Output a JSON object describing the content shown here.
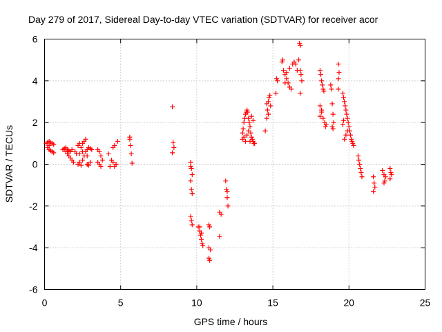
{
  "chart_data": {
    "type": "scatter",
    "title": "Day 279 of 2017, Sidereal Day-to-day VTEC variation (SDTVAR) for receiver acor",
    "xlabel": "GPS time / hours",
    "ylabel": "SDTVAR / TECUs",
    "xlim": [
      0,
      25
    ],
    "ylim": [
      -6,
      6
    ],
    "xticks": [
      0,
      5,
      10,
      15,
      20,
      25
    ],
    "yticks": [
      -6,
      -4,
      -2,
      0,
      2,
      4,
      6
    ],
    "grid": true,
    "marker": "+",
    "color": "#ff0000",
    "series": [
      {
        "name": "SDTVAR",
        "points": [
          [
            0.1,
            1.0
          ],
          [
            0.2,
            1.05
          ],
          [
            0.3,
            1.1
          ],
          [
            0.4,
            1.05
          ],
          [
            0.5,
            1.0
          ],
          [
            0.6,
            0.95
          ],
          [
            0.2,
            0.8
          ],
          [
            0.3,
            0.7
          ],
          [
            0.4,
            0.65
          ],
          [
            0.5,
            0.6
          ],
          [
            0.6,
            0.55
          ],
          [
            0.3,
            0.9
          ],
          [
            1.2,
            0.7
          ],
          [
            1.3,
            0.75
          ],
          [
            1.4,
            0.6
          ],
          [
            1.5,
            0.5
          ],
          [
            1.6,
            0.4
          ],
          [
            1.7,
            0.3
          ],
          [
            1.8,
            0.2
          ],
          [
            1.9,
            0.1
          ],
          [
            1.5,
            0.7
          ],
          [
            1.6,
            0.65
          ],
          [
            1.7,
            0.6
          ],
          [
            1.8,
            0.7
          ],
          [
            2.0,
            0.6
          ],
          [
            2.1,
            0.5
          ],
          [
            1.4,
            0.8
          ],
          [
            2.2,
            0.9
          ],
          [
            2.3,
            1.0
          ],
          [
            2.4,
            0.8
          ],
          [
            2.5,
            1.0
          ],
          [
            2.6,
            1.1
          ],
          [
            2.7,
            1.2
          ],
          [
            2.2,
            0.0
          ],
          [
            2.3,
            0.1
          ],
          [
            2.4,
            -0.05
          ],
          [
            2.5,
            0.2
          ],
          [
            2.6,
            0.4
          ],
          [
            2.7,
            0.6
          ],
          [
            2.8,
            0.7
          ],
          [
            2.9,
            0.8
          ],
          [
            3.0,
            0.75
          ],
          [
            3.1,
            0.7
          ],
          [
            2.8,
            0.0
          ],
          [
            2.9,
            -0.05
          ],
          [
            3.0,
            0.1
          ],
          [
            2.3,
            0.5
          ],
          [
            2.5,
            0.6
          ],
          [
            2.8,
            0.4
          ],
          [
            3.5,
            0.7
          ],
          [
            3.6,
            0.6
          ],
          [
            3.7,
            0.4
          ],
          [
            3.8,
            0.2
          ],
          [
            3.5,
            0.1
          ],
          [
            3.6,
            0.0
          ],
          [
            3.7,
            -0.1
          ],
          [
            4.2,
            0.5
          ],
          [
            4.3,
            -0.1
          ],
          [
            4.4,
            0.2
          ],
          [
            4.5,
            0.8
          ],
          [
            4.6,
            0.9
          ],
          [
            4.7,
            0.0
          ],
          [
            4.8,
            1.1
          ],
          [
            4.6,
            -0.1
          ],
          [
            4.5,
            0.1
          ],
          [
            5.6,
            1.3
          ],
          [
            5.65,
            0.9
          ],
          [
            5.7,
            0.5
          ],
          [
            5.75,
            0.05
          ],
          [
            5.6,
            1.2
          ],
          [
            8.4,
            2.75
          ],
          [
            8.45,
            1.05
          ],
          [
            8.5,
            0.8
          ],
          [
            8.4,
            0.55
          ],
          [
            9.6,
            -0.1
          ],
          [
            9.65,
            -0.2
          ],
          [
            9.7,
            -0.5
          ],
          [
            9.6,
            -0.8
          ],
          [
            9.65,
            -1.2
          ],
          [
            9.7,
            -1.4
          ],
          [
            9.6,
            -2.5
          ],
          [
            9.65,
            -2.7
          ],
          [
            9.7,
            -2.9
          ],
          [
            9.6,
            0.1
          ],
          [
            10.1,
            -3.0
          ],
          [
            10.2,
            -3.2
          ],
          [
            10.25,
            -3.4
          ],
          [
            10.3,
            -3.6
          ],
          [
            10.35,
            -3.8
          ],
          [
            10.4,
            -3.9
          ],
          [
            10.2,
            -3.0
          ],
          [
            10.3,
            -3.3
          ],
          [
            10.8,
            -2.9
          ],
          [
            10.85,
            -3.0
          ],
          [
            10.8,
            -4.0
          ],
          [
            10.9,
            -4.1
          ],
          [
            10.8,
            -4.5
          ],
          [
            10.85,
            -4.6
          ],
          [
            11.5,
            -2.3
          ],
          [
            11.6,
            -2.4
          ],
          [
            11.5,
            -3.45
          ],
          [
            11.9,
            -0.8
          ],
          [
            11.95,
            -1.2
          ],
          [
            12.0,
            -1.6
          ],
          [
            12.05,
            -2.0
          ],
          [
            12.0,
            -1.3
          ],
          [
            13.0,
            1.5
          ],
          [
            13.05,
            1.7
          ],
          [
            13.1,
            2.0
          ],
          [
            13.15,
            2.2
          ],
          [
            13.2,
            2.4
          ],
          [
            13.25,
            2.5
          ],
          [
            13.3,
            2.6
          ],
          [
            13.35,
            2.5
          ],
          [
            13.4,
            2.2
          ],
          [
            13.45,
            2.0
          ],
          [
            13.5,
            1.8
          ],
          [
            13.55,
            1.5
          ],
          [
            13.6,
            1.3
          ],
          [
            13.65,
            1.2
          ],
          [
            13.7,
            1.1
          ],
          [
            13.75,
            1.0
          ],
          [
            13.8,
            1.0
          ],
          [
            13.0,
            1.2
          ],
          [
            13.1,
            1.3
          ],
          [
            13.2,
            1.1
          ],
          [
            13.3,
            1.4
          ],
          [
            13.4,
            1.6
          ],
          [
            13.5,
            1.1
          ],
          [
            13.6,
            2.3
          ],
          [
            13.7,
            2.1
          ],
          [
            14.5,
            1.6
          ],
          [
            14.6,
            2.2
          ],
          [
            14.65,
            2.6
          ],
          [
            14.7,
            3.0
          ],
          [
            14.75,
            3.2
          ],
          [
            14.8,
            3.3
          ],
          [
            14.85,
            2.8
          ],
          [
            14.7,
            2.4
          ],
          [
            14.6,
            2.9
          ],
          [
            15.2,
            3.4
          ],
          [
            15.25,
            4.1
          ],
          [
            15.3,
            4.0
          ],
          [
            15.6,
            4.9
          ],
          [
            15.65,
            5.0
          ],
          [
            15.7,
            4.5
          ],
          [
            15.8,
            4.3
          ],
          [
            15.9,
            4.1
          ],
          [
            16.0,
            3.9
          ],
          [
            16.1,
            3.7
          ],
          [
            16.2,
            3.6
          ],
          [
            15.8,
            3.9
          ],
          [
            15.9,
            4.4
          ],
          [
            16.1,
            4.6
          ],
          [
            16.3,
            4.8
          ],
          [
            16.4,
            4.9
          ],
          [
            16.5,
            4.8
          ],
          [
            16.6,
            4.5
          ],
          [
            16.7,
            5.0
          ],
          [
            16.75,
            5.8
          ],
          [
            16.8,
            5.7
          ],
          [
            16.8,
            4.5
          ],
          [
            16.85,
            4.3
          ],
          [
            16.8,
            3.4
          ],
          [
            16.9,
            4.0
          ],
          [
            18.1,
            4.5
          ],
          [
            18.15,
            4.3
          ],
          [
            18.2,
            4.0
          ],
          [
            18.25,
            3.8
          ],
          [
            18.3,
            3.6
          ],
          [
            18.35,
            3.5
          ],
          [
            18.1,
            2.8
          ],
          [
            18.2,
            2.5
          ],
          [
            18.3,
            2.2
          ],
          [
            18.4,
            2.0
          ],
          [
            18.45,
            1.8
          ],
          [
            18.5,
            1.9
          ],
          [
            18.1,
            2.3
          ],
          [
            18.2,
            2.6
          ],
          [
            18.8,
            3.8
          ],
          [
            18.85,
            3.6
          ],
          [
            18.9,
            2.9
          ],
          [
            18.95,
            2.4
          ],
          [
            19.0,
            2.0
          ],
          [
            18.9,
            1.8
          ],
          [
            18.95,
            1.7
          ],
          [
            19.3,
            4.8
          ],
          [
            19.35,
            4.4
          ],
          [
            19.3,
            4.1
          ],
          [
            19.3,
            3.6
          ],
          [
            19.6,
            3.4
          ],
          [
            19.65,
            3.2
          ],
          [
            19.7,
            3.0
          ],
          [
            19.75,
            2.8
          ],
          [
            19.8,
            2.6
          ],
          [
            19.85,
            2.4
          ],
          [
            19.9,
            2.2
          ],
          [
            19.95,
            2.0
          ],
          [
            20.0,
            1.8
          ],
          [
            20.05,
            1.6
          ],
          [
            20.1,
            1.4
          ],
          [
            20.15,
            1.2
          ],
          [
            20.2,
            1.1
          ],
          [
            20.25,
            1.0
          ],
          [
            20.3,
            0.9
          ],
          [
            19.7,
            1.2
          ],
          [
            19.8,
            1.4
          ],
          [
            19.9,
            1.6
          ],
          [
            19.6,
            1.9
          ],
          [
            19.65,
            2.1
          ],
          [
            20.6,
            0.4
          ],
          [
            20.65,
            0.2
          ],
          [
            20.7,
            0.0
          ],
          [
            20.75,
            -0.2
          ],
          [
            20.8,
            -0.4
          ],
          [
            20.85,
            -0.6
          ],
          [
            21.6,
            -0.6
          ],
          [
            21.65,
            -0.9
          ],
          [
            21.7,
            -1.1
          ],
          [
            21.6,
            -1.3
          ],
          [
            22.2,
            -0.3
          ],
          [
            22.3,
            -0.5
          ],
          [
            22.4,
            -0.6
          ],
          [
            22.3,
            -0.9
          ],
          [
            22.35,
            -0.8
          ],
          [
            22.7,
            -0.2
          ],
          [
            22.75,
            -0.4
          ],
          [
            22.8,
            -0.5
          ],
          [
            22.7,
            -0.7
          ]
        ]
      }
    ]
  }
}
